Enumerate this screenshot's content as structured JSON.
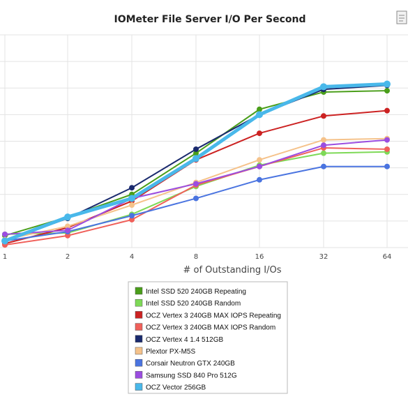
{
  "chart_data": {
    "type": "line",
    "title": "IOMeter File Server I/O Per Second",
    "xlabel": "# of Outstanding I/Os",
    "ylabel": "",
    "x_categories": [
      "1",
      "2",
      "4",
      "8",
      "16",
      "32",
      "64"
    ],
    "ylim": [
      0,
      8
    ],
    "grid": true,
    "legend_position": "bottom-center",
    "series": [
      {
        "name": "Intel SSD 520 240GB Repeating",
        "color": "#4a9e1a",
        "values": [
          0.45,
          1.15,
          2.0,
          3.55,
          5.2,
          5.85,
          5.9
        ]
      },
      {
        "name": "Intel SSD 520 240GB Random",
        "color": "#7ed957",
        "values": [
          0.5,
          0.55,
          1.25,
          2.3,
          3.1,
          3.55,
          3.6
        ]
      },
      {
        "name": "OCZ Vertex 3 240GB MAX IOPS Repeating",
        "color": "#cc2222",
        "values": [
          0.15,
          0.75,
          1.75,
          3.3,
          4.3,
          4.95,
          5.15
        ]
      },
      {
        "name": "OCZ Vertex 3 240GB MAX IOPS Random",
        "color": "#f0605a",
        "values": [
          0.1,
          0.45,
          1.05,
          2.35,
          3.05,
          3.75,
          3.7
        ]
      },
      {
        "name": "OCZ Vertex 4 1.4 512GB",
        "color": "#1a2a6e",
        "values": [
          0.25,
          1.1,
          2.25,
          3.7,
          5.0,
          5.95,
          6.1
        ]
      },
      {
        "name": "Plextor PX-M5S",
        "color": "#f5c28a",
        "values": [
          0.3,
          0.8,
          1.6,
          2.45,
          3.3,
          4.05,
          4.1
        ]
      },
      {
        "name": "Corsair Neutron GTX 240GB",
        "color": "#4a74e0",
        "values": [
          0.25,
          0.6,
          1.2,
          1.85,
          2.55,
          3.05,
          3.05
        ]
      },
      {
        "name": "Samsung SSD 840 Pro 512G",
        "color": "#9b4de0",
        "values": [
          0.5,
          0.65,
          1.85,
          2.4,
          3.05,
          3.85,
          4.05
        ]
      },
      {
        "name": "OCZ Vector 256GB",
        "color": "#49b8ea",
        "values": [
          0.25,
          1.15,
          1.85,
          3.35,
          5.0,
          6.05,
          6.15
        ]
      }
    ]
  }
}
